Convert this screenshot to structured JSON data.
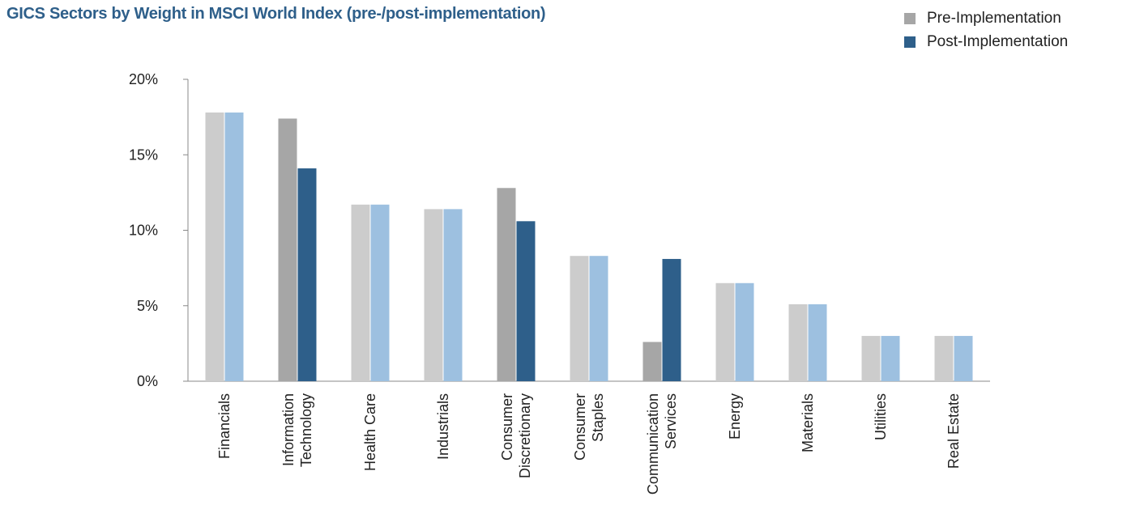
{
  "chart_data": {
    "type": "bar",
    "title": "GICS Sectors by Weight in MSCI World Index (pre-/post-implementation)",
    "xlabel": "",
    "ylabel": "",
    "ylim": [
      0,
      20
    ],
    "y_ticks": [
      "0%",
      "5%",
      "10%",
      "15%",
      "20%"
    ],
    "y_tick_values": [
      0,
      5,
      10,
      15,
      20
    ],
    "grid": false,
    "legend_position": "top-right",
    "categories": [
      [
        "Financials"
      ],
      [
        "Information",
        "Technology"
      ],
      [
        "Health Care"
      ],
      [
        "Industrials"
      ],
      [
        "Consumer",
        "Discretionary"
      ],
      [
        "Consumer",
        "Staples"
      ],
      [
        "Communication",
        "Services"
      ],
      [
        "Energy"
      ],
      [
        "Materials"
      ],
      [
        "Utilities"
      ],
      [
        "Real Estate"
      ]
    ],
    "changed": [
      false,
      true,
      false,
      false,
      true,
      false,
      true,
      false,
      false,
      false,
      false
    ],
    "series": [
      {
        "name": "Pre-Implementation",
        "color": "#a6a6a6",
        "light_color": "#cccccc",
        "values": [
          17.8,
          17.4,
          11.7,
          11.4,
          12.8,
          8.3,
          2.6,
          6.5,
          5.1,
          3.0,
          3.0
        ]
      },
      {
        "name": "Post-Implementation",
        "color": "#2e5f8a",
        "light_color": "#9dc0e0",
        "values": [
          17.8,
          14.1,
          11.7,
          11.4,
          10.6,
          8.3,
          8.1,
          6.5,
          5.1,
          3.0,
          3.0
        ]
      }
    ]
  }
}
